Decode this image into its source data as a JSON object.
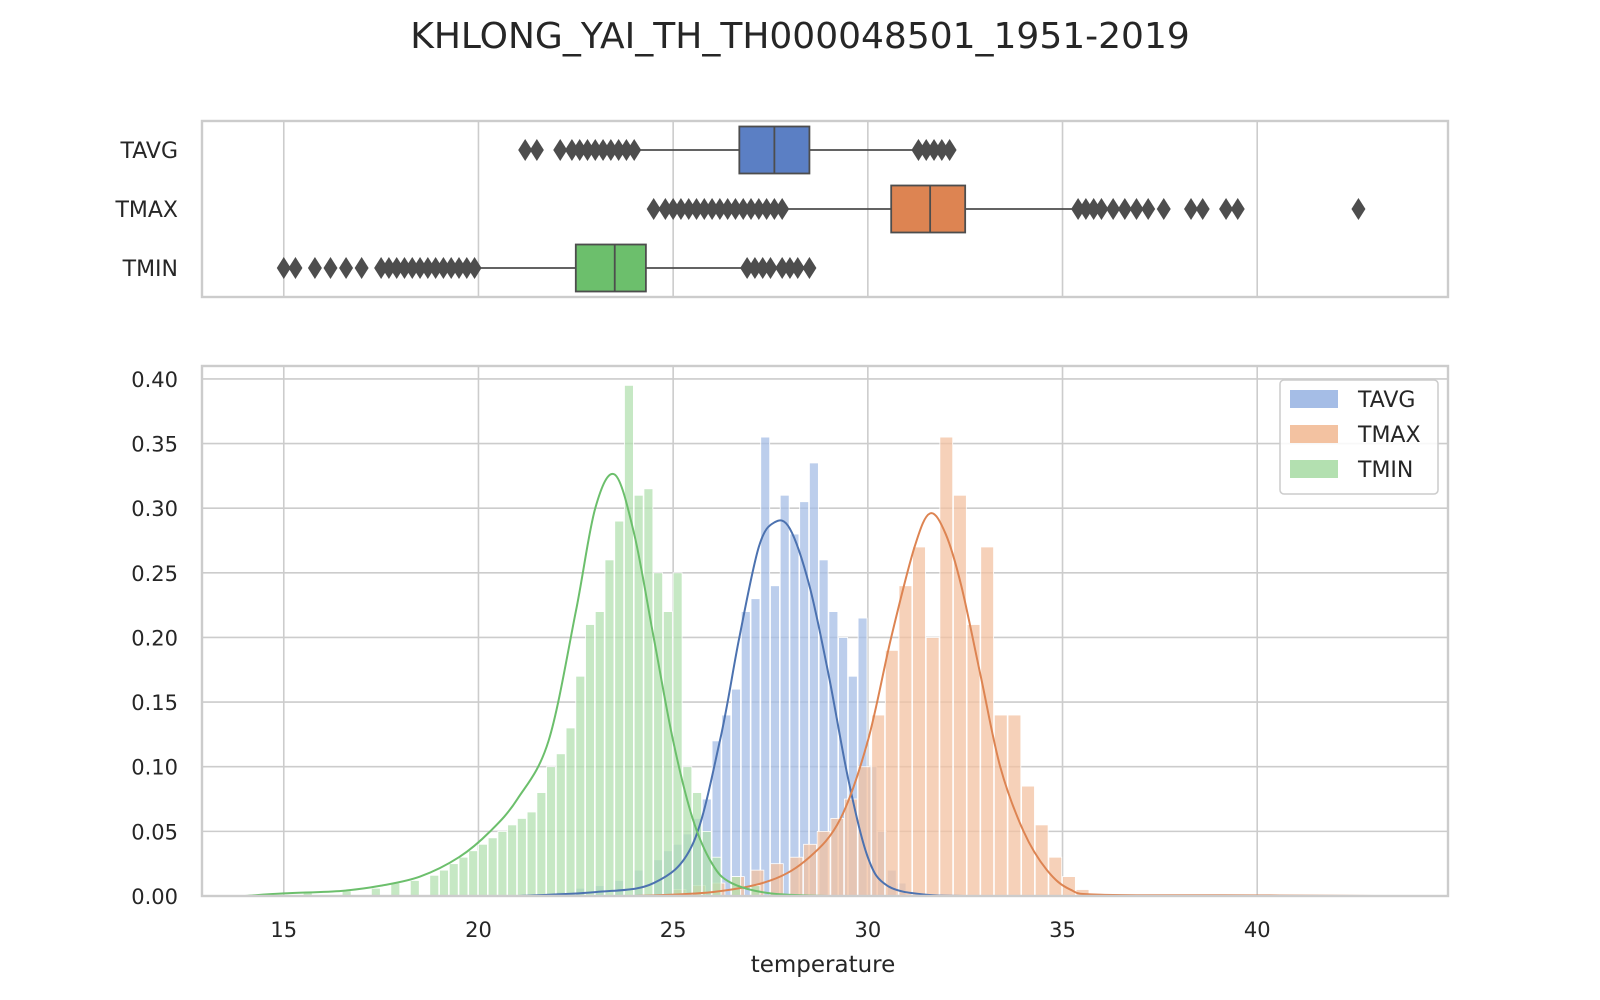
{
  "chart_data": [
    {
      "panel": "box",
      "type": "box",
      "title": "KHLONG_YAI_TH_TH000048501_1951-2019",
      "categories": [
        "TAVG",
        "TMAX",
        "TMIN"
      ],
      "xlim": [
        12.9,
        44.9
      ],
      "xticks": [
        15,
        20,
        25,
        30,
        35,
        40
      ],
      "grid": true,
      "series": [
        {
          "name": "TAVG",
          "color": "#5b7fc4",
          "q1": 26.7,
          "median": 27.6,
          "q3": 28.5,
          "whisker_low": 24.1,
          "whisker_high": 31.2,
          "outliers": [
            21.2,
            21.5,
            22.1,
            22.4,
            22.6,
            22.8,
            23.0,
            23.2,
            23.4,
            23.6,
            23.8,
            24.0,
            31.3,
            31.5,
            31.7,
            31.9,
            32.1
          ]
        },
        {
          "name": "TMAX",
          "color": "#dd8452",
          "q1": 30.6,
          "median": 31.6,
          "q3": 32.5,
          "whisker_low": 27.8,
          "whisker_high": 35.3,
          "outliers": [
            24.5,
            24.8,
            25.0,
            25.2,
            25.4,
            25.6,
            25.8,
            26.0,
            26.2,
            26.4,
            26.6,
            26.8,
            27.0,
            27.2,
            27.4,
            27.6,
            27.8,
            35.4,
            35.6,
            35.8,
            36.0,
            36.3,
            36.6,
            36.9,
            37.2,
            37.6,
            38.3,
            38.6,
            39.2,
            39.5,
            42.6
          ]
        },
        {
          "name": "TMIN",
          "color": "#6cbf6c",
          "q1": 22.5,
          "median": 23.5,
          "q3": 24.3,
          "whisker_low": 20.0,
          "whisker_high": 26.8,
          "outliers": [
            15.0,
            15.3,
            15.8,
            16.2,
            16.6,
            17.0,
            17.5,
            17.7,
            17.9,
            18.1,
            18.3,
            18.5,
            18.7,
            18.9,
            19.1,
            19.3,
            19.5,
            19.7,
            19.9,
            26.9,
            27.1,
            27.3,
            27.5,
            27.8,
            28.0,
            28.2,
            28.5
          ]
        }
      ]
    },
    {
      "panel": "hist",
      "type": "bar",
      "xlabel": "temperature",
      "ylabel": "",
      "xlim": [
        12.9,
        44.9
      ],
      "ylim": [
        0,
        0.41
      ],
      "xticks": [
        15,
        20,
        25,
        30,
        35,
        40
      ],
      "yticks": [
        "0.00",
        "0.05",
        "0.10",
        "0.15",
        "0.20",
        "0.25",
        "0.30",
        "0.35",
        "0.40"
      ],
      "grid": true,
      "legend": {
        "position": "top-right",
        "entries": [
          "TAVG",
          "TMAX",
          "TMIN"
        ]
      },
      "series": [
        {
          "name": "TAVG",
          "bar_color": "#a5bde6",
          "line_color": "#4c72b0",
          "bin_width": 0.25,
          "bins": [
            [
              22.0,
              0.003
            ],
            [
              22.5,
              0.006
            ],
            [
              23.0,
              0.008
            ],
            [
              23.5,
              0.012
            ],
            [
              24.0,
              0.02
            ],
            [
              24.5,
              0.028
            ],
            [
              24.75,
              0.035
            ],
            [
              25.0,
              0.04
            ],
            [
              25.25,
              0.048
            ],
            [
              25.5,
              0.06
            ],
            [
              25.75,
              0.075
            ],
            [
              26.0,
              0.12
            ],
            [
              26.25,
              0.14
            ],
            [
              26.5,
              0.16
            ],
            [
              26.75,
              0.22
            ],
            [
              27.0,
              0.23
            ],
            [
              27.25,
              0.355
            ],
            [
              27.5,
              0.24
            ],
            [
              27.75,
              0.31
            ],
            [
              28.0,
              0.28
            ],
            [
              28.25,
              0.305
            ],
            [
              28.5,
              0.335
            ],
            [
              28.75,
              0.26
            ],
            [
              29.0,
              0.22
            ],
            [
              29.25,
              0.2
            ],
            [
              29.5,
              0.17
            ],
            [
              29.75,
              0.215
            ],
            [
              30.0,
              0.1
            ],
            [
              30.25,
              0.05
            ],
            [
              30.5,
              0.02
            ],
            [
              30.75,
              0.01
            ]
          ],
          "kde": [
            [
              21.0,
              0.0
            ],
            [
              23.0,
              0.003
            ],
            [
              24.5,
              0.01
            ],
            [
              25.5,
              0.04
            ],
            [
              26.2,
              0.12
            ],
            [
              26.7,
              0.2
            ],
            [
              27.2,
              0.27
            ],
            [
              27.6,
              0.289
            ],
            [
              28.0,
              0.284
            ],
            [
              28.5,
              0.24
            ],
            [
              29.0,
              0.17
            ],
            [
              29.5,
              0.09
            ],
            [
              30.0,
              0.03
            ],
            [
              30.5,
              0.008
            ],
            [
              31.5,
              0.001
            ],
            [
              33.0,
              0.0
            ]
          ]
        },
        {
          "name": "TMAX",
          "bar_color": "#f3c2a1",
          "line_color": "#dd8452",
          "bin_width": 0.35,
          "bins": [
            [
              25.0,
              0.005
            ],
            [
              25.5,
              0.008
            ],
            [
              26.0,
              0.01
            ],
            [
              26.5,
              0.015
            ],
            [
              27.0,
              0.02
            ],
            [
              27.5,
              0.025
            ],
            [
              28.0,
              0.03
            ],
            [
              28.35,
              0.04
            ],
            [
              28.7,
              0.05
            ],
            [
              29.05,
              0.06
            ],
            [
              29.4,
              0.075
            ],
            [
              29.75,
              0.1
            ],
            [
              30.1,
              0.14
            ],
            [
              30.45,
              0.19
            ],
            [
              30.8,
              0.24
            ],
            [
              31.15,
              0.27
            ],
            [
              31.5,
              0.2
            ],
            [
              31.85,
              0.355
            ],
            [
              32.2,
              0.31
            ],
            [
              32.55,
              0.21
            ],
            [
              32.9,
              0.27
            ],
            [
              33.25,
              0.14
            ],
            [
              33.6,
              0.14
            ],
            [
              33.95,
              0.085
            ],
            [
              34.3,
              0.055
            ],
            [
              34.65,
              0.03
            ],
            [
              35.0,
              0.015
            ],
            [
              35.35,
              0.005
            ]
          ],
          "kde": [
            [
              24.0,
              0.0
            ],
            [
              26.0,
              0.003
            ],
            [
              27.5,
              0.012
            ],
            [
              28.5,
              0.03
            ],
            [
              29.3,
              0.06
            ],
            [
              30.0,
              0.12
            ],
            [
              30.6,
              0.2
            ],
            [
              31.2,
              0.27
            ],
            [
              31.6,
              0.296
            ],
            [
              32.0,
              0.28
            ],
            [
              32.4,
              0.24
            ],
            [
              32.9,
              0.17
            ],
            [
              33.4,
              0.1
            ],
            [
              34.0,
              0.05
            ],
            [
              34.6,
              0.02
            ],
            [
              35.2,
              0.005
            ],
            [
              36.0,
              0.001
            ],
            [
              40.0,
              0.0005
            ],
            [
              43.0,
              0.0
            ]
          ]
        },
        {
          "name": "TMIN",
          "bar_color": "#b3e0b0",
          "line_color": "#6cbf6c",
          "bin_width": 0.25,
          "bins": [
            [
              14.5,
              0.002
            ],
            [
              15.5,
              0.003
            ],
            [
              16.5,
              0.004
            ],
            [
              17.25,
              0.006
            ],
            [
              17.75,
              0.01
            ],
            [
              18.25,
              0.012
            ],
            [
              18.75,
              0.016
            ],
            [
              19.0,
              0.02
            ],
            [
              19.25,
              0.025
            ],
            [
              19.5,
              0.03
            ],
            [
              19.75,
              0.035
            ],
            [
              20.0,
              0.04
            ],
            [
              20.25,
              0.045
            ],
            [
              20.5,
              0.05
            ],
            [
              20.75,
              0.055
            ],
            [
              21.0,
              0.06
            ],
            [
              21.25,
              0.065
            ],
            [
              21.5,
              0.08
            ],
            [
              21.75,
              0.1
            ],
            [
              22.0,
              0.11
            ],
            [
              22.25,
              0.13
            ],
            [
              22.5,
              0.17
            ],
            [
              22.75,
              0.21
            ],
            [
              23.0,
              0.22
            ],
            [
              23.25,
              0.26
            ],
            [
              23.5,
              0.29
            ],
            [
              23.75,
              0.395
            ],
            [
              24.0,
              0.31
            ],
            [
              24.25,
              0.315
            ],
            [
              24.5,
              0.25
            ],
            [
              24.75,
              0.22
            ],
            [
              25.0,
              0.25
            ],
            [
              25.25,
              0.1
            ],
            [
              25.5,
              0.08
            ],
            [
              25.75,
              0.05
            ],
            [
              26.0,
              0.03
            ],
            [
              26.5,
              0.015
            ],
            [
              27.0,
              0.008
            ]
          ],
          "kde": [
            [
              14.0,
              0.0
            ],
            [
              15.0,
              0.002
            ],
            [
              16.5,
              0.004
            ],
            [
              17.5,
              0.008
            ],
            [
              18.5,
              0.015
            ],
            [
              19.5,
              0.03
            ],
            [
              20.3,
              0.05
            ],
            [
              21.0,
              0.075
            ],
            [
              21.8,
              0.12
            ],
            [
              22.5,
              0.22
            ],
            [
              23.0,
              0.3
            ],
            [
              23.5,
              0.326
            ],
            [
              24.0,
              0.28
            ],
            [
              24.5,
              0.2
            ],
            [
              25.0,
              0.12
            ],
            [
              25.5,
              0.06
            ],
            [
              26.0,
              0.025
            ],
            [
              26.5,
              0.01
            ],
            [
              27.5,
              0.002
            ],
            [
              29.0,
              0.0
            ]
          ]
        }
      ]
    }
  ]
}
